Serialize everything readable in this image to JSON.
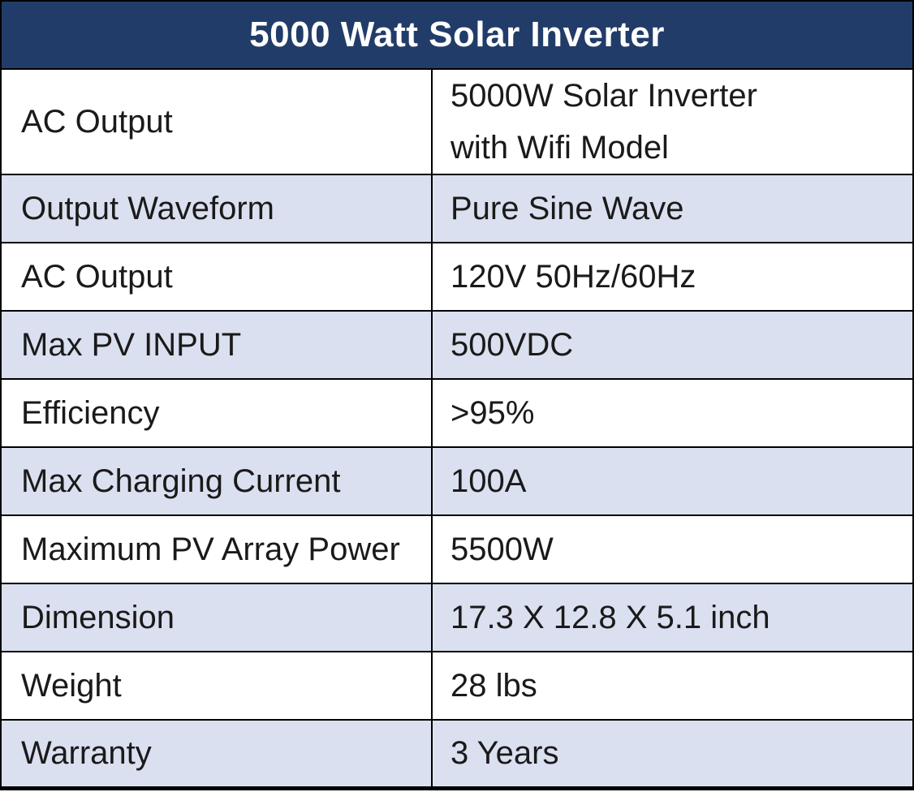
{
  "table": {
    "title": "5000 Watt Solar Inverter",
    "rows": [
      {
        "label": "AC Output",
        "value": "5000W Solar Inverter\nwith Wifi Model"
      },
      {
        "label": "Output Waveform",
        "value": "Pure Sine Wave"
      },
      {
        "label": "AC Output",
        "value": "120V 50Hz/60Hz"
      },
      {
        "label": "Max PV INPUT",
        "value": "500VDC"
      },
      {
        "label": "Efficiency",
        "value": ">95%"
      },
      {
        "label": "Max Charging Current",
        "value": "100A"
      },
      {
        "label": "Maximum PV Array Power",
        "value": "5500W"
      },
      {
        "label": "Dimension",
        "value": "17.3 X 12.8 X 5.1 inch"
      },
      {
        "label": "Weight",
        "value": "28 lbs"
      },
      {
        "label": "Warranty",
        "value": "3 Years"
      }
    ],
    "colors": {
      "header_bg": "#223C69",
      "header_text": "#FFFFFF",
      "row_bg": "#FFFFFF",
      "row_alt_bg": "#DBE0F0",
      "border": "#000000",
      "text": "#1A1A1A"
    }
  }
}
